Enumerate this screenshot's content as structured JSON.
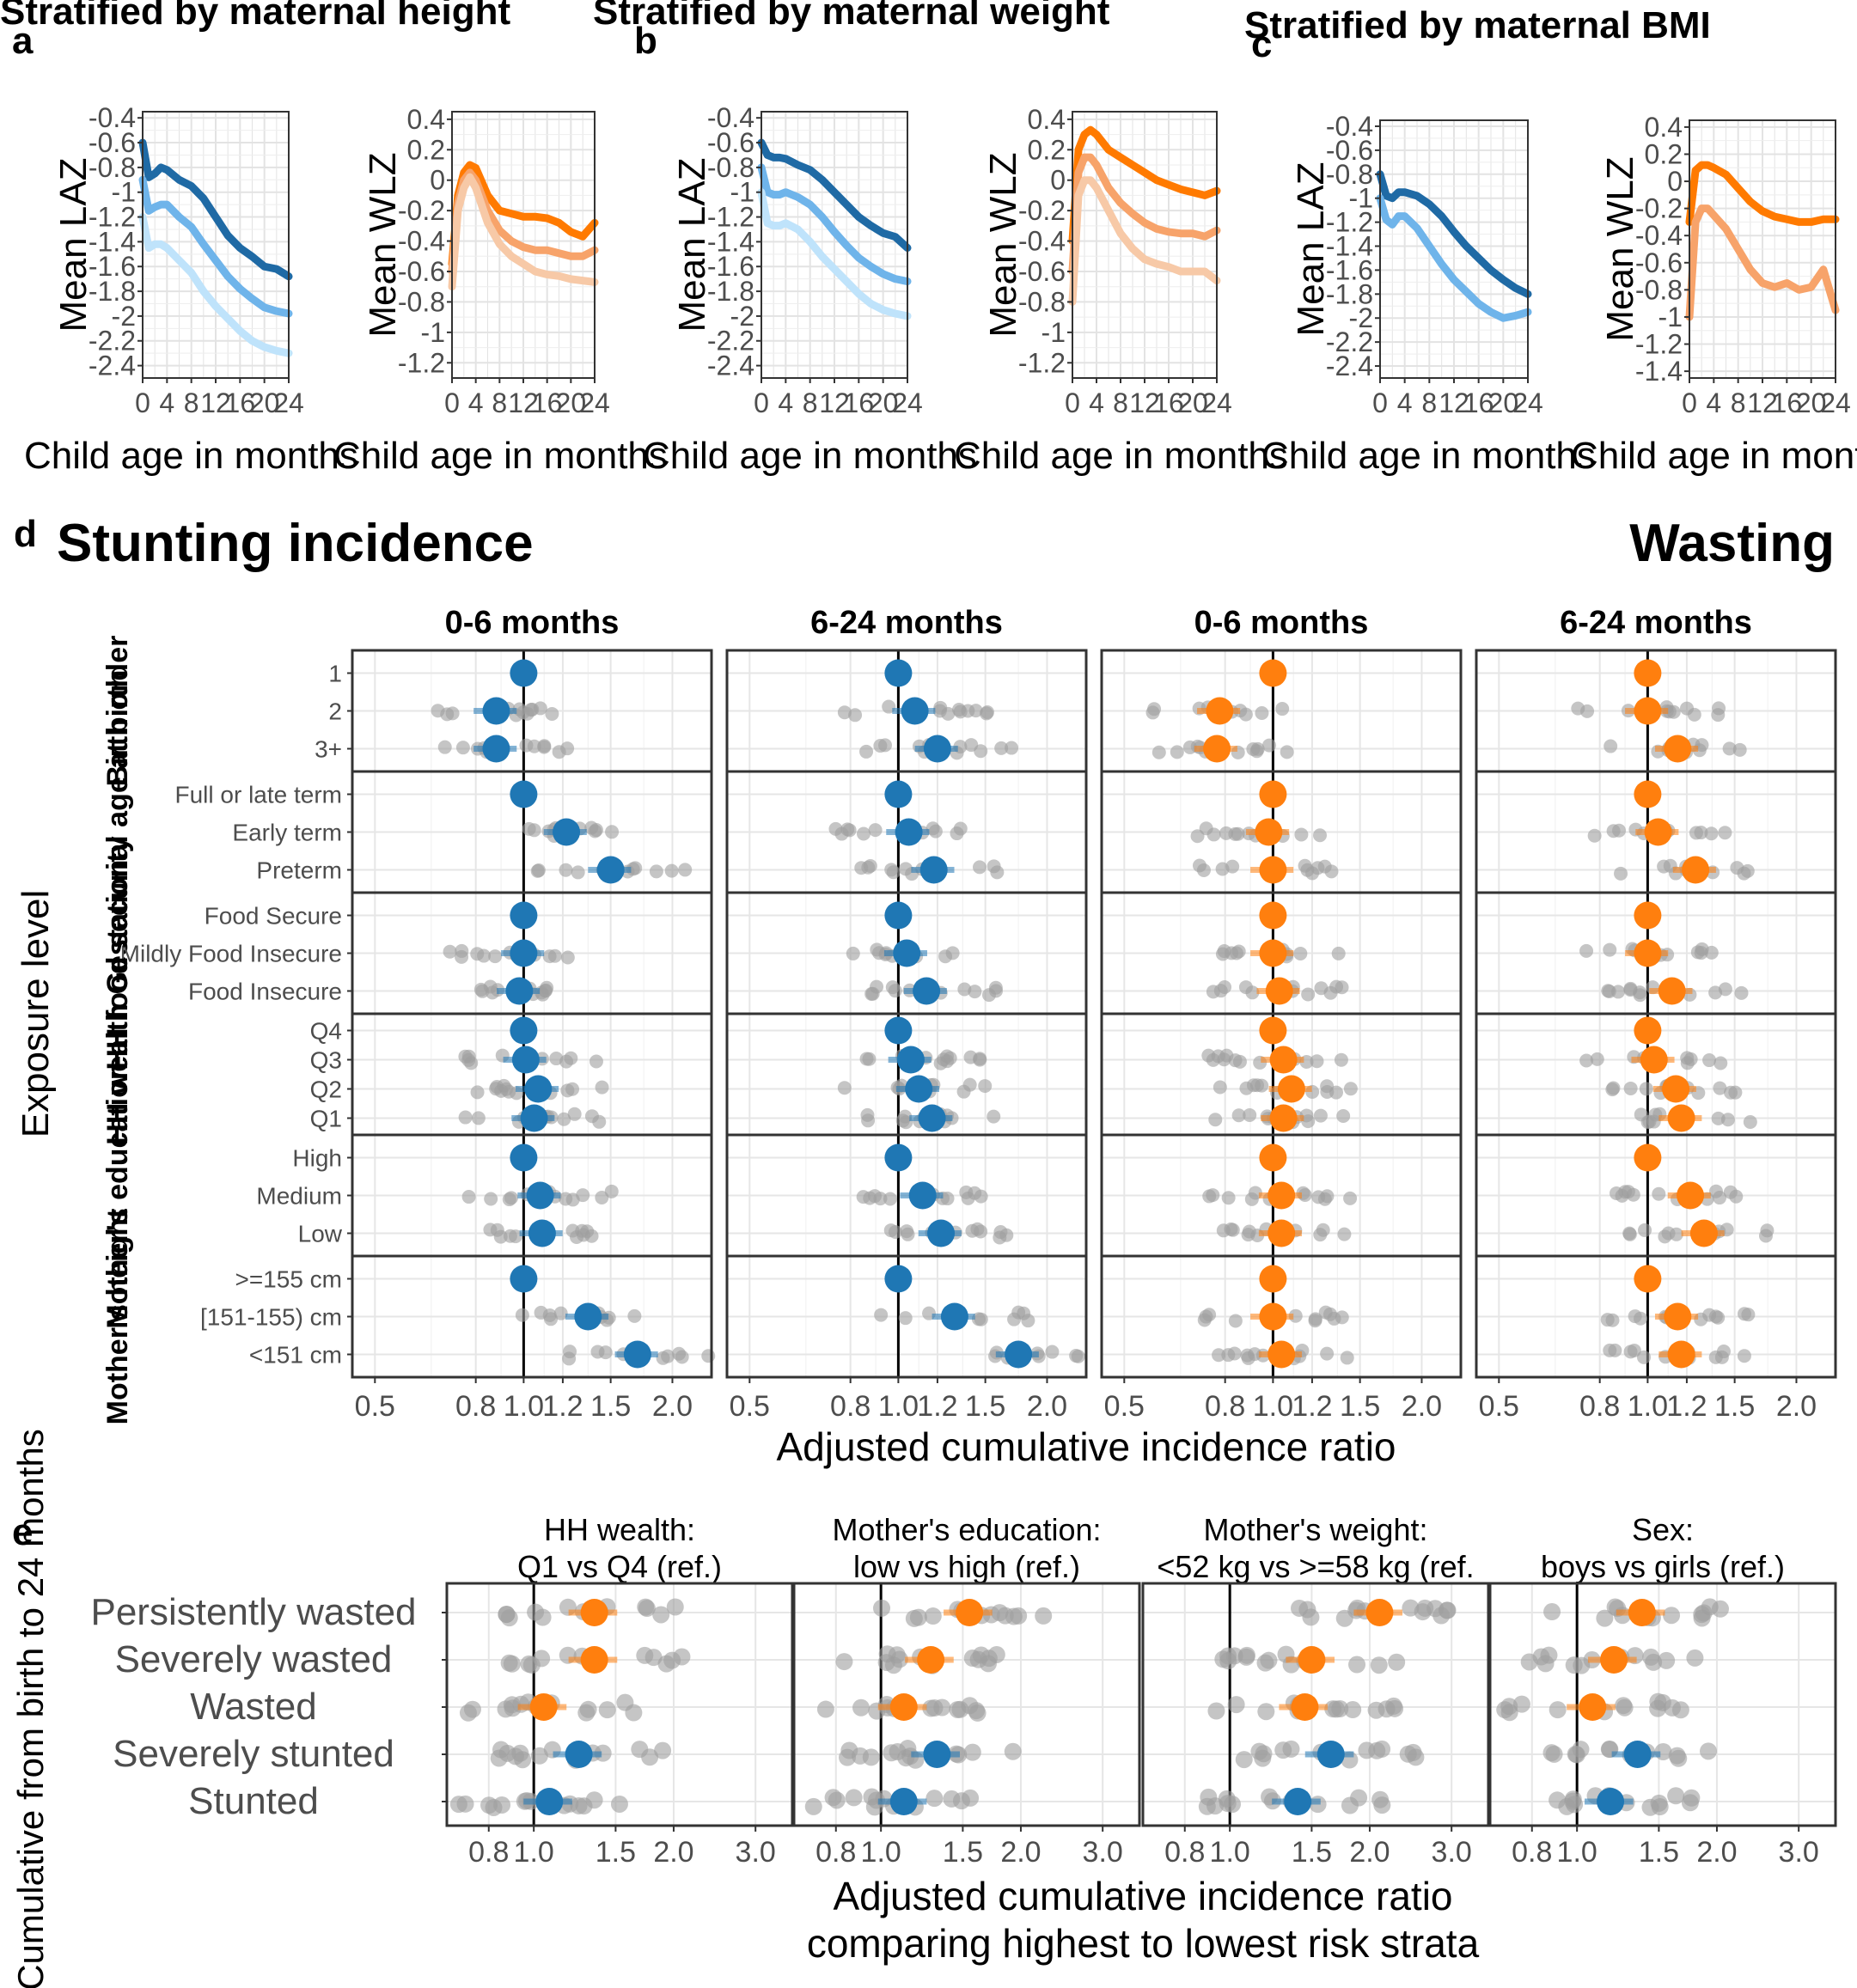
{
  "panels": {
    "a": {
      "letter": "a",
      "title": "Stratified by maternal height"
    },
    "b": {
      "letter": "b",
      "title": "Stratified by maternal weight"
    },
    "c": {
      "letter": "c",
      "title": "Stratified by maternal BMI"
    },
    "d": {
      "letter": "d",
      "title_left": "Stunting incidence",
      "title_right": "Wasting"
    },
    "e": {
      "letter": "e"
    }
  },
  "colors": {
    "stunting": "#1f77b4",
    "wasting": "#ff7f0e",
    "laz_lines": [
      "#1f6aa5",
      "#6fb4ea",
      "#bfe3fb"
    ],
    "waz_lines": [
      "#ff7a00",
      "#f7a36a",
      "#f7c9a7"
    ],
    "point_gray": "#9e9e9e"
  },
  "chart_data": [
    {
      "id": "a-laz",
      "type": "line",
      "xlabel": "Child age in months",
      "ylabel": "Mean LAZ",
      "xticks": [
        0,
        4,
        8,
        12,
        16,
        20,
        24
      ],
      "xlim": [
        0,
        24
      ],
      "yticks": [
        -0.4,
        -0.6,
        -0.8,
        -1,
        -1.2,
        -1.4,
        -1.6,
        -1.8,
        -2,
        -2.2,
        -2.4
      ],
      "ylim": [
        -2.5,
        -0.35
      ],
      "x": [
        0,
        1,
        2,
        3,
        4,
        6,
        8,
        10,
        12,
        14,
        16,
        18,
        20,
        22,
        24
      ],
      "series": [
        {
          "values": [
            -0.6,
            -0.88,
            -0.85,
            -0.8,
            -0.82,
            -0.9,
            -0.95,
            -1.05,
            -1.2,
            -1.35,
            -1.45,
            -1.52,
            -1.6,
            -1.62,
            -1.68
          ]
        },
        {
          "values": [
            -0.9,
            -1.15,
            -1.12,
            -1.1,
            -1.1,
            -1.2,
            -1.28,
            -1.42,
            -1.55,
            -1.68,
            -1.78,
            -1.86,
            -1.93,
            -1.96,
            -1.98
          ]
        },
        {
          "values": [
            -1.2,
            -1.45,
            -1.42,
            -1.42,
            -1.45,
            -1.55,
            -1.65,
            -1.8,
            -1.92,
            -2.02,
            -2.12,
            -2.2,
            -2.25,
            -2.28,
            -2.3
          ]
        }
      ]
    },
    {
      "id": "a-wlz",
      "type": "line",
      "xlabel": "Child age in months",
      "ylabel": "Mean WLZ",
      "xticks": [
        0,
        4,
        8,
        12,
        16,
        20,
        24
      ],
      "xlim": [
        0,
        24
      ],
      "yticks": [
        0.4,
        0.2,
        0,
        -0.2,
        -0.4,
        -0.6,
        -0.8,
        -1,
        -1.2
      ],
      "ylim": [
        -1.3,
        0.45
      ],
      "x": [
        0,
        1,
        2,
        3,
        4,
        6,
        8,
        10,
        12,
        14,
        16,
        18,
        20,
        22,
        24
      ],
      "series": [
        {
          "values": [
            -0.55,
            -0.1,
            0.05,
            0.1,
            0.08,
            -0.1,
            -0.2,
            -0.22,
            -0.24,
            -0.24,
            -0.25,
            -0.28,
            -0.34,
            -0.37,
            -0.28
          ]
        },
        {
          "values": [
            -0.6,
            -0.15,
            0.0,
            0.05,
            0.0,
            -0.2,
            -0.33,
            -0.4,
            -0.44,
            -0.46,
            -0.46,
            -0.48,
            -0.5,
            -0.5,
            -0.46
          ]
        },
        {
          "values": [
            -0.7,
            -0.2,
            -0.05,
            0.02,
            -0.05,
            -0.28,
            -0.42,
            -0.5,
            -0.55,
            -0.6,
            -0.62,
            -0.63,
            -0.65,
            -0.66,
            -0.67
          ]
        }
      ]
    },
    {
      "id": "b-laz",
      "type": "line",
      "xlabel": "Child age in months",
      "ylabel": "Mean LAZ",
      "xticks": [
        0,
        4,
        8,
        12,
        16,
        20,
        24
      ],
      "xlim": [
        0,
        24
      ],
      "yticks": [
        -0.4,
        -0.6,
        -0.8,
        -1,
        -1.2,
        -1.4,
        -1.6,
        -1.8,
        -2,
        -2.2,
        -2.4
      ],
      "ylim": [
        -2.5,
        -0.35
      ],
      "x": [
        0,
        1,
        2,
        3,
        4,
        6,
        8,
        10,
        12,
        14,
        16,
        18,
        20,
        22,
        24
      ],
      "series": [
        {
          "values": [
            -0.6,
            -0.7,
            -0.72,
            -0.72,
            -0.73,
            -0.78,
            -0.82,
            -0.9,
            -1.0,
            -1.1,
            -1.2,
            -1.27,
            -1.33,
            -1.36,
            -1.45
          ]
        },
        {
          "values": [
            -0.8,
            -1.0,
            -1.02,
            -1.02,
            -1.0,
            -1.04,
            -1.1,
            -1.2,
            -1.32,
            -1.43,
            -1.53,
            -1.6,
            -1.66,
            -1.7,
            -1.72
          ]
        },
        {
          "values": [
            -1.0,
            -1.25,
            -1.27,
            -1.27,
            -1.25,
            -1.3,
            -1.4,
            -1.52,
            -1.62,
            -1.72,
            -1.82,
            -1.9,
            -1.95,
            -1.98,
            -2.0
          ]
        }
      ]
    },
    {
      "id": "b-wlz",
      "type": "line",
      "xlabel": "Child age in months",
      "ylabel": "Mean WLZ",
      "xticks": [
        0,
        4,
        8,
        12,
        16,
        20,
        24
      ],
      "xlim": [
        0,
        24
      ],
      "yticks": [
        0.4,
        0.2,
        0,
        -0.2,
        -0.4,
        -0.6,
        -0.8,
        -1,
        -1.2
      ],
      "ylim": [
        -1.3,
        0.45
      ],
      "x": [
        0,
        1,
        2,
        3,
        4,
        6,
        8,
        10,
        12,
        14,
        16,
        18,
        20,
        22,
        24
      ],
      "series": [
        {
          "values": [
            -0.4,
            0.2,
            0.3,
            0.33,
            0.3,
            0.2,
            0.15,
            0.1,
            0.05,
            0.0,
            -0.03,
            -0.06,
            -0.08,
            -0.1,
            -0.07
          ]
        },
        {
          "values": [
            -0.6,
            0.05,
            0.15,
            0.15,
            0.1,
            -0.05,
            -0.15,
            -0.22,
            -0.28,
            -0.32,
            -0.34,
            -0.35,
            -0.35,
            -0.37,
            -0.33
          ]
        },
        {
          "values": [
            -0.8,
            -0.1,
            0.0,
            0.0,
            -0.05,
            -0.2,
            -0.35,
            -0.45,
            -0.52,
            -0.55,
            -0.57,
            -0.6,
            -0.6,
            -0.6,
            -0.66
          ]
        }
      ]
    },
    {
      "id": "c-laz",
      "type": "line",
      "xlabel": "Child age in months",
      "ylabel": "Mean LAZ",
      "xticks": [
        0,
        4,
        8,
        12,
        16,
        20,
        24
      ],
      "xlim": [
        0,
        24
      ],
      "yticks": [
        -0.4,
        -0.6,
        -0.8,
        -1,
        -1.2,
        -1.4,
        -1.6,
        -1.8,
        -2,
        -2.2,
        -2.4
      ],
      "ylim": [
        -2.5,
        -0.35
      ],
      "x": [
        0,
        1,
        2,
        3,
        4,
        6,
        8,
        10,
        12,
        14,
        16,
        18,
        20,
        22,
        24
      ],
      "series": [
        {
          "values": [
            -0.8,
            -0.98,
            -1.0,
            -0.95,
            -0.95,
            -0.98,
            -1.05,
            -1.15,
            -1.28,
            -1.4,
            -1.5,
            -1.6,
            -1.68,
            -1.75,
            -1.8
          ]
        },
        {
          "values": [
            -1.0,
            -1.18,
            -1.22,
            -1.15,
            -1.15,
            -1.25,
            -1.4,
            -1.55,
            -1.68,
            -1.78,
            -1.88,
            -1.95,
            -2.0,
            -1.98,
            -1.95
          ]
        }
      ]
    },
    {
      "id": "c-wlz",
      "type": "line",
      "xlabel": "Child age in months",
      "ylabel": "Mean WLZ",
      "xticks": [
        0,
        4,
        8,
        12,
        16,
        20,
        24
      ],
      "xlim": [
        0,
        24
      ],
      "yticks": [
        0.4,
        0.2,
        0,
        -0.2,
        -0.4,
        -0.6,
        -0.8,
        -1,
        -1.2,
        -1.4
      ],
      "ylim": [
        -1.45,
        0.45
      ],
      "x": [
        0,
        1,
        2,
        3,
        4,
        6,
        8,
        10,
        12,
        14,
        16,
        18,
        20,
        22,
        24
      ],
      "series": [
        {
          "values": [
            -0.3,
            0.08,
            0.12,
            0.12,
            0.1,
            0.05,
            -0.05,
            -0.15,
            -0.22,
            -0.26,
            -0.28,
            -0.3,
            -0.3,
            -0.28,
            -0.28
          ]
        },
        {
          "values": [
            -1.0,
            -0.3,
            -0.2,
            -0.2,
            -0.25,
            -0.35,
            -0.5,
            -0.65,
            -0.75,
            -0.78,
            -0.75,
            -0.8,
            -0.78,
            -0.65,
            -0.95
          ]
        }
      ]
    },
    {
      "id": "d",
      "type": "scatter",
      "xlabel": "Adjusted cumulative incidence ratio",
      "ylabel": "Exposure level",
      "xticks": [
        0.5,
        0.8,
        1.0,
        1.2,
        1.5,
        2.0
      ],
      "xticklabels": [
        "0.5",
        "0.8",
        "1.0",
        "1.2",
        "1.5",
        "2.0"
      ],
      "log_x": true,
      "xlim": [
        0.45,
        2.4
      ],
      "facets": [
        {
          "label": "0-6 months",
          "outcome": "stunting"
        },
        {
          "label": "6-24 months",
          "outcome": "stunting"
        },
        {
          "label": "0-6 months",
          "outcome": "wasting"
        },
        {
          "label": "6-24 months",
          "outcome": "wasting"
        }
      ],
      "groups": [
        {
          "label": "Birth order",
          "levels": [
            "1",
            "2",
            "3+"
          ],
          "est": [
            [
              1.0,
              0.88,
              0.88
            ],
            [
              1.0,
              1.08,
              1.2
            ],
            [
              1.0,
              0.78,
              0.77
            ],
            [
              1.0,
              1.0,
              1.15
            ]
          ]
        },
        {
          "label": "Gestational age at birth",
          "levels": [
            "Full or late term",
            "Early term",
            "Preterm"
          ],
          "est": [
            [
              1.0,
              1.22,
              1.5
            ],
            [
              1.0,
              1.05,
              1.18
            ],
            [
              1.0,
              0.98,
              1.0
            ],
            [
              1.0,
              1.05,
              1.25
            ]
          ]
        },
        {
          "label": "HH food security",
          "levels": [
            "Food Secure",
            "Mildly Food Insecure",
            "Food Insecure"
          ],
          "est": [
            [
              1.0,
              1.0,
              0.98
            ],
            [
              1.0,
              1.04,
              1.14
            ],
            [
              1.0,
              1.0,
              1.03
            ],
            [
              1.0,
              1.0,
              1.12
            ]
          ]
        },
        {
          "label": "HH wealth",
          "levels": [
            "Q4",
            "Q3",
            "Q2",
            "Q1"
          ],
          "est": [
            [
              1.0,
              1.01,
              1.07,
              1.05
            ],
            [
              1.0,
              1.06,
              1.1,
              1.17
            ],
            [
              1.0,
              1.05,
              1.09,
              1.05
            ],
            [
              1.0,
              1.03,
              1.14,
              1.17
            ]
          ]
        },
        {
          "label": "Mother's education",
          "levels": [
            "High",
            "Medium",
            "Low"
          ],
          "est": [
            [
              1.0,
              1.08,
              1.09
            ],
            [
              1.0,
              1.12,
              1.22
            ],
            [
              1.0,
              1.04,
              1.04
            ],
            [
              1.0,
              1.22,
              1.3
            ]
          ]
        },
        {
          "label": "Mother's height",
          "levels": [
            ">=155 cm",
            "[151-155) cm",
            "<151 cm"
          ],
          "est": [
            [
              1.0,
              1.35,
              1.7
            ],
            [
              1.0,
              1.3,
              1.75
            ],
            [
              1.0,
              1.0,
              1.04
            ],
            [
              1.0,
              1.15,
              1.17
            ]
          ]
        }
      ]
    },
    {
      "id": "e",
      "type": "scatter",
      "xlabel": "Adjusted cumulative incidence ratio",
      "xlabel2": "comparing highest to lowest risk strata",
      "ylabel": "Cumulative from birth to 24 months",
      "xticks": [
        0.8,
        1.0,
        1.5,
        2.0,
        3.0
      ],
      "xticklabels": [
        "0.8",
        "1.0",
        "1.5",
        "2.0",
        "3.0"
      ],
      "log_x": true,
      "xlim": [
        0.65,
        3.6
      ],
      "facets": [
        {
          "title1": "HH wealth:",
          "title2": "Q1 vs Q4 (ref.)"
        },
        {
          "title1": "Mother's education:",
          "title2": "low vs high (ref.)"
        },
        {
          "title1": "Mother's weight:",
          "title2": "<52 kg vs >=58 kg (ref."
        },
        {
          "title1": "Sex:",
          "title2": "boys vs girls (ref.)"
        }
      ],
      "outcomes": [
        "Persistently wasted",
        "Severely wasted",
        "Wasted",
        "Severely stunted",
        "Stunted"
      ],
      "est": [
        [
          1.35,
          1.35,
          1.05,
          1.25,
          1.08
        ],
        [
          1.55,
          1.28,
          1.12,
          1.32,
          1.12
        ],
        [
          2.1,
          1.5,
          1.45,
          1.65,
          1.4
        ],
        [
          1.38,
          1.2,
          1.08,
          1.35,
          1.18
        ]
      ]
    }
  ]
}
